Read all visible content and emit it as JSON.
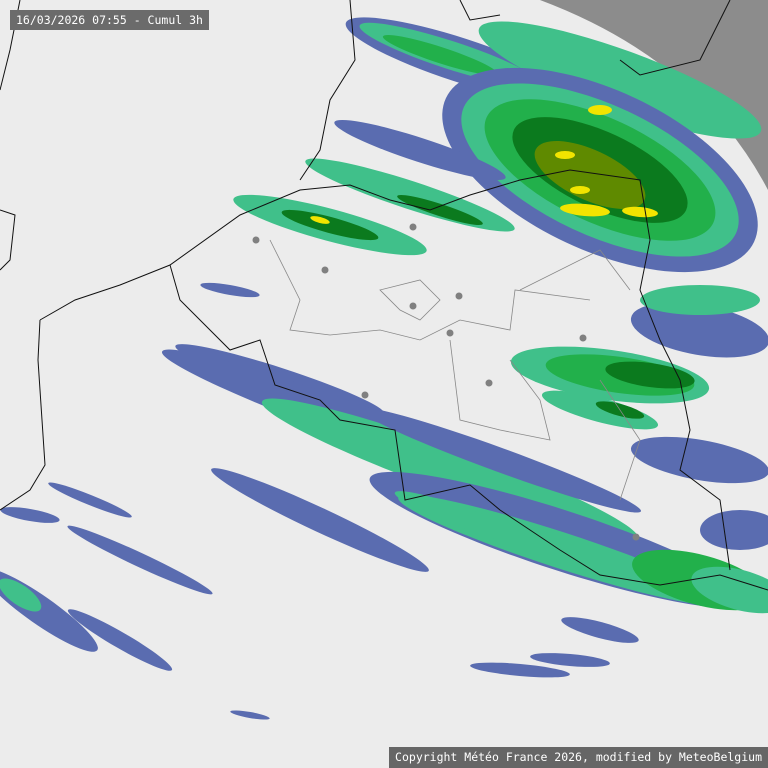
{
  "header": {
    "title": "16/03/2026 07:55 - Cumul 3h"
  },
  "footer": {
    "copyright": "Copyright Météo France 2026, modified by MeteoBelgium"
  },
  "legend_colors": {
    "background": "#ececec",
    "no_data": "#8c8c8c",
    "light": "#5a6cb0",
    "moderate": "#40c08a",
    "heavy": "#22b04b",
    "very_heavy": "#0b7a1e",
    "intense": "#5f8a00",
    "extreme": "#f2e400"
  }
}
